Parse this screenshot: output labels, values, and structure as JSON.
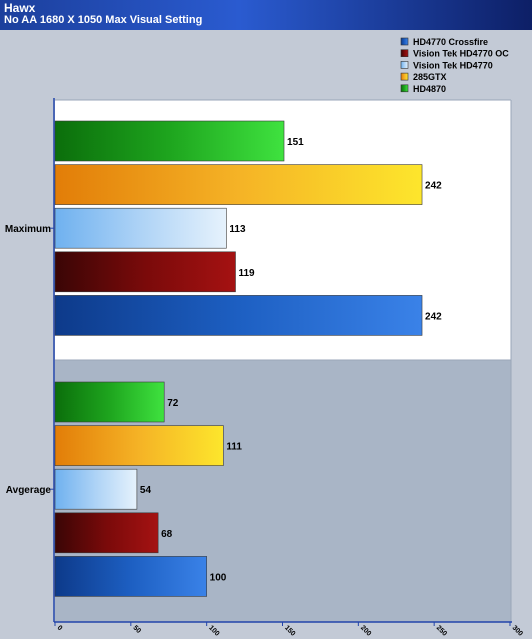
{
  "header": {
    "title": "Hawx",
    "subtitle": "No AA 1680 X 1050 Max Visual Setting"
  },
  "chart_data": {
    "type": "bar",
    "orientation": "horizontal",
    "categories": [
      "Maximum",
      "Avgerage"
    ],
    "series": [
      {
        "name": "HD4770 Crossfire",
        "color": "#2a6ad0",
        "values": [
          242,
          100
        ]
      },
      {
        "name": "Vision Tek HD4770 OC",
        "color": "#8b0c0c",
        "values": [
          119,
          68
        ]
      },
      {
        "name": "Vision Tek HD4770",
        "color": "#9fcdf5",
        "values": [
          113,
          54
        ]
      },
      {
        "name": "285GTX",
        "color": "#f2a21a",
        "values": [
          242,
          111
        ]
      },
      {
        "name": "HD4870",
        "color": "#22bb22",
        "values": [
          151,
          72
        ]
      }
    ],
    "xlim": [
      0,
      300
    ],
    "xticks": [
      "0",
      "50",
      "100",
      "150",
      "200",
      "250",
      "300"
    ],
    "legend_position": "top-right",
    "grid": false
  }
}
